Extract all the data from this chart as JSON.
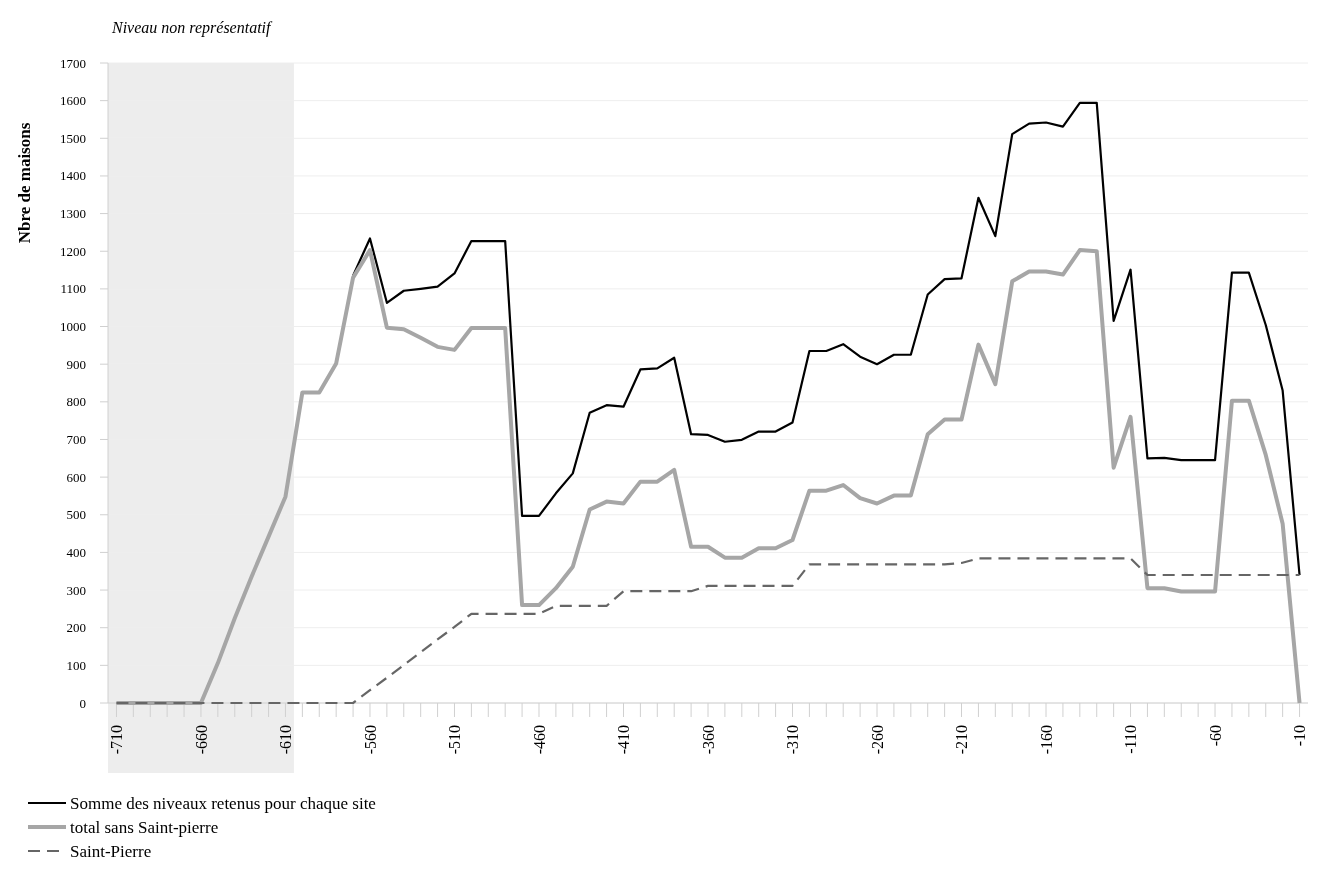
{
  "chart_data": {
    "type": "line",
    "ylabel": "Nbre de maisons",
    "x": [
      -710,
      -700,
      -690,
      -680,
      -670,
      -660,
      -650,
      -640,
      -630,
      -620,
      -610,
      -600,
      -590,
      -580,
      -570,
      -560,
      -550,
      -540,
      -530,
      -520,
      -510,
      -500,
      -490,
      -480,
      -470,
      -460,
      -450,
      -440,
      -430,
      -420,
      -410,
      -400,
      -390,
      -380,
      -370,
      -360,
      -350,
      -340,
      -330,
      -320,
      -310,
      -300,
      -290,
      -280,
      -270,
      -260,
      -250,
      -240,
      -230,
      -220,
      -210,
      -200,
      -190,
      -180,
      -170,
      -160,
      -150,
      -140,
      -130,
      -120,
      -110,
      -100,
      -90,
      -80,
      -70,
      -60,
      -50,
      -40,
      -30,
      -20,
      -10
    ],
    "series": [
      {
        "name": "Somme des niveaux retenus pour chaque site",
        "color": "#000000",
        "line_style": "solid",
        "values": [
          null,
          null,
          null,
          null,
          null,
          null,
          null,
          null,
          null,
          null,
          null,
          null,
          null,
          null,
          1135,
          1234,
          1063,
          1095,
          1100,
          1106,
          1141,
          1227,
          1227,
          1227,
          497,
          497,
          557,
          610,
          771,
          791,
          787,
          886,
          889,
          917,
          714,
          712,
          694,
          699,
          721,
          721,
          745,
          935,
          935,
          953,
          920,
          900,
          925,
          925,
          1085,
          1126,
          1128,
          1342,
          1240,
          1511,
          1539,
          1542,
          1531,
          1594,
          1594,
          1015,
          1151,
          650,
          651,
          645,
          645,
          645,
          1143,
          1143,
          1004,
          830,
          340
        ]
      },
      {
        "name": "total sans Saint-pierre",
        "color": "#a6a6a6",
        "line_style": "solid",
        "values": [
          0,
          0,
          0,
          0,
          0,
          0,
          106,
          225,
          336,
          442,
          548,
          825,
          825,
          902,
          1130,
          1203,
          997,
          993,
          970,
          946,
          938,
          996,
          996,
          996,
          260,
          260,
          305,
          362,
          514,
          535,
          530,
          588,
          588,
          619,
          415,
          415,
          386,
          386,
          411,
          411,
          433,
          564,
          564,
          579,
          544,
          530,
          551,
          551,
          714,
          753,
          753,
          952,
          847,
          1120,
          1146,
          1146,
          1138,
          1203,
          1200,
          625,
          760,
          305,
          305,
          296,
          296,
          296,
          803,
          803,
          659,
          476,
          0
        ]
      },
      {
        "name": "Saint-Pierre",
        "color": "#666666",
        "line_style": "dashed",
        "values": [
          0,
          0,
          0,
          0,
          0,
          0,
          0,
          0,
          0,
          0,
          0,
          0,
          0,
          0,
          0,
          34,
          67,
          101,
          135,
          169,
          202,
          237,
          237,
          237,
          237,
          237,
          258,
          258,
          258,
          258,
          297,
          297,
          297,
          297,
          297,
          311,
          311,
          311,
          311,
          311,
          311,
          368,
          368,
          368,
          368,
          368,
          368,
          368,
          368,
          368,
          372,
          384,
          384,
          384,
          384,
          384,
          384,
          384,
          384,
          384,
          384,
          340,
          340,
          340,
          340,
          340,
          340,
          340,
          340,
          340,
          340
        ]
      }
    ],
    "xlim": [
      -715,
      -5
    ],
    "xticks": [
      -710,
      {
        "value": -700,
        "label": null
      },
      {
        "value": -690,
        "label": null
      },
      {
        "value": -680,
        "label": null
      },
      {
        "value": -670,
        "label": null
      },
      -660,
      {
        "value": -650,
        "label": null
      },
      {
        "value": -640,
        "label": null
      },
      {
        "value": -630,
        "label": null
      },
      {
        "value": -620,
        "label": null
      },
      -610,
      {
        "value": -600,
        "label": null
      },
      {
        "value": -590,
        "label": null
      },
      {
        "value": -580,
        "label": null
      },
      {
        "value": -570,
        "label": null
      },
      -560,
      {
        "value": -550,
        "label": null
      },
      {
        "value": -540,
        "label": null
      },
      {
        "value": -530,
        "label": null
      },
      {
        "value": -520,
        "label": null
      },
      -510,
      {
        "value": -500,
        "label": null
      },
      {
        "value": -490,
        "label": null
      },
      {
        "value": -480,
        "label": null
      },
      {
        "value": -470,
        "label": null
      },
      -460,
      {
        "value": -450,
        "label": null
      },
      {
        "value": -440,
        "label": null
      },
      {
        "value": -430,
        "label": null
      },
      {
        "value": -420,
        "label": null
      },
      -410,
      {
        "value": -400,
        "label": null
      },
      {
        "value": -390,
        "label": null
      },
      {
        "value": -380,
        "label": null
      },
      {
        "value": -370,
        "label": null
      },
      -360,
      {
        "value": -350,
        "label": null
      },
      {
        "value": -340,
        "label": null
      },
      {
        "value": -330,
        "label": null
      },
      {
        "value": -320,
        "label": null
      },
      -310,
      {
        "value": -300,
        "label": null
      },
      {
        "value": -290,
        "label": null
      },
      {
        "value": -280,
        "label": null
      },
      {
        "value": -270,
        "label": null
      },
      -260,
      {
        "value": -250,
        "label": null
      },
      {
        "value": -240,
        "label": null
      },
      {
        "value": -230,
        "label": null
      },
      {
        "value": -220,
        "label": null
      },
      -210,
      {
        "value": -200,
        "label": null
      },
      {
        "value": -190,
        "label": null
      },
      {
        "value": -180,
        "label": null
      },
      {
        "value": -170,
        "label": null
      },
      -160,
      {
        "value": -150,
        "label": null
      },
      {
        "value": -140,
        "label": null
      },
      {
        "value": -130,
        "label": null
      },
      {
        "value": -120,
        "label": null
      },
      -110,
      {
        "value": -100,
        "label": null
      },
      {
        "value": -90,
        "label": null
      },
      {
        "value": -80,
        "label": null
      },
      {
        "value": -70,
        "label": null
      },
      -60,
      {
        "value": -50,
        "label": null
      },
      {
        "value": -40,
        "label": null
      },
      {
        "value": -30,
        "label": null
      },
      {
        "value": -20,
        "label": null
      },
      -10
    ],
    "ylim": [
      0,
      1700
    ],
    "yticks": [
      0,
      100,
      200,
      300,
      400,
      500,
      600,
      700,
      800,
      900,
      1000,
      1100,
      1200,
      1300,
      1400,
      1500,
      1600,
      1700
    ],
    "grid": "y",
    "legend": "bottom left",
    "marker": "none",
    "bands": [
      {
        "axis": "x",
        "from": -715,
        "to": -605,
        "label": "Niveau non représentatif",
        "color": "#ededed"
      }
    ]
  }
}
